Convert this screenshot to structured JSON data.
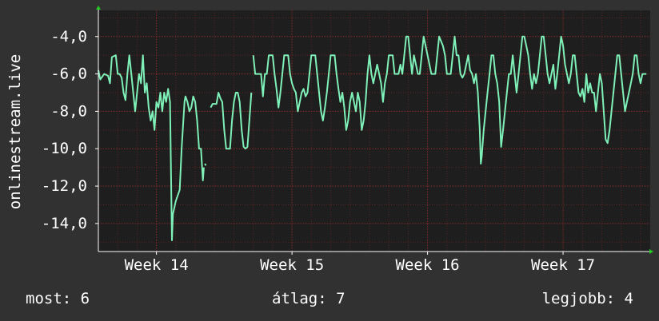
{
  "colors": {
    "background": "#313131",
    "plot_background": "#1e1e1e",
    "grid": "#8a2a2a",
    "series": "#7ef0b8",
    "axis": "#ffffff",
    "arrow": "#22cc22"
  },
  "stats": {
    "now": "most: 6",
    "avg": "átlag: 7",
    "best": "legjobb: 4"
  },
  "chart_data": {
    "type": "line",
    "title": "",
    "ylabel": "onlinestream.live",
    "xlabel": "",
    "grid": true,
    "ylim": [
      -15.5,
      -2.6
    ],
    "yticks": [
      -14,
      -12,
      -10,
      -8,
      -6,
      -4
    ],
    "ytick_labels": [
      "-14,0",
      "-12,0",
      "-10,0",
      "-8,0",
      "-6,0",
      "-4,0"
    ],
    "xlim": [
      0,
      28.5
    ],
    "xticks": [
      3,
      10,
      17,
      24
    ],
    "xtick_labels": [
      "Week 14",
      "Week 15",
      "Week 16",
      "Week 17"
    ],
    "x_minor_grid": [
      1,
      2,
      4,
      5,
      6,
      7,
      8,
      9,
      11,
      12,
      13,
      14,
      15,
      16,
      18,
      19,
      20,
      21,
      22,
      23,
      25,
      26,
      27,
      28
    ],
    "series": [
      {
        "name": "",
        "segments": [
          [
            [
              0.0,
              -5.8
            ],
            [
              0.1,
              -6.3
            ],
            [
              0.3,
              -6.0
            ],
            [
              0.5,
              -6.1
            ],
            [
              0.6,
              -6.5
            ],
            [
              0.7,
              -5.1
            ],
            [
              0.9,
              -5.0
            ],
            [
              1.0,
              -6.0
            ],
            [
              1.1,
              -6.0
            ],
            [
              1.2,
              -6.2
            ],
            [
              1.3,
              -7.0
            ],
            [
              1.4,
              -7.4
            ],
            [
              1.5,
              -6.0
            ],
            [
              1.6,
              -5.0
            ],
            [
              1.7,
              -6.0
            ],
            [
              1.8,
              -7.0
            ],
            [
              1.9,
              -8.0
            ],
            [
              2.0,
              -7.0
            ],
            [
              2.1,
              -6.0
            ],
            [
              2.2,
              -6.5
            ],
            [
              2.3,
              -5.0
            ],
            [
              2.4,
              -7.0
            ],
            [
              2.5,
              -6.5
            ],
            [
              2.6,
              -7.8
            ],
            [
              2.7,
              -8.5
            ],
            [
              2.8,
              -8.0
            ],
            [
              2.9,
              -9.0
            ],
            [
              3.0,
              -7.5
            ],
            [
              3.1,
              -7.8
            ],
            [
              3.2,
              -7.0
            ],
            [
              3.3,
              -8.0
            ],
            [
              3.4,
              -7.0
            ],
            [
              3.5,
              -7.5
            ],
            [
              3.6,
              -6.8
            ],
            [
              3.7,
              -7.5
            ],
            [
              3.8,
              -14.9
            ],
            [
              3.85,
              -13.5
            ],
            [
              4.0,
              -12.8
            ],
            [
              4.2,
              -12.2
            ],
            [
              4.3,
              -10.0
            ],
            [
              4.45,
              -7.5
            ],
            [
              4.5,
              -7.2
            ],
            [
              4.6,
              -7.5
            ],
            [
              4.7,
              -8.0
            ],
            [
              4.8,
              -7.8
            ],
            [
              4.9,
              -7.2
            ],
            [
              5.0,
              -7.5
            ],
            [
              5.1,
              -8.5
            ],
            [
              5.2,
              -10.0
            ],
            [
              5.3,
              -10.0
            ],
            [
              5.4,
              -11.7
            ],
            [
              5.45,
              -11.0
            ]
          ],
          [
            [
              5.5,
              -10.8
            ],
            [
              5.55,
              -10.9
            ]
          ],
          [
            [
              5.8,
              -7.8
            ],
            [
              5.9,
              -7.6
            ],
            [
              6.1,
              -7.6
            ],
            [
              6.2,
              -7.0
            ],
            [
              6.3,
              -7.3
            ],
            [
              6.4,
              -7.5
            ],
            [
              6.5,
              -9.0
            ],
            [
              6.6,
              -10.0
            ],
            [
              6.7,
              -10.0
            ],
            [
              6.8,
              -10.0
            ],
            [
              6.9,
              -8.5
            ],
            [
              7.0,
              -7.5
            ],
            [
              7.1,
              -7.0
            ],
            [
              7.2,
              -7.0
            ],
            [
              7.3,
              -7.5
            ],
            [
              7.4,
              -9.0
            ],
            [
              7.5,
              -9.9
            ],
            [
              7.6,
              -10.0
            ],
            [
              7.7,
              -9.9
            ],
            [
              7.8,
              -8.5
            ],
            [
              7.9,
              -7.0
            ]
          ],
          [
            [
              8.0,
              -5.0
            ],
            [
              8.1,
              -6.0
            ],
            [
              8.2,
              -6.0
            ],
            [
              8.4,
              -6.0
            ],
            [
              8.5,
              -7.2
            ],
            [
              8.6,
              -6.0
            ],
            [
              8.7,
              -6.0
            ],
            [
              8.8,
              -5.0
            ],
            [
              9.0,
              -5.0
            ],
            [
              9.1,
              -6.0
            ],
            [
              9.2,
              -6.8
            ],
            [
              9.3,
              -7.8
            ],
            [
              9.4,
              -7.0
            ],
            [
              9.5,
              -6.0
            ],
            [
              9.6,
              -5.0
            ],
            [
              9.8,
              -5.0
            ],
            [
              9.9,
              -6.0
            ],
            [
              10.0,
              -6.5
            ],
            [
              10.1,
              -6.8
            ],
            [
              10.2,
              -7.0
            ],
            [
              10.3,
              -8.0
            ],
            [
              10.4,
              -7.5
            ],
            [
              10.5,
              -7.0
            ],
            [
              10.6,
              -6.8
            ],
            [
              10.7,
              -7.2
            ],
            [
              10.8,
              -7.0
            ],
            [
              10.9,
              -6.0
            ],
            [
              11.0,
              -5.0
            ],
            [
              11.2,
              -5.0
            ],
            [
              11.3,
              -6.0
            ],
            [
              11.4,
              -7.0
            ],
            [
              11.5,
              -8.0
            ],
            [
              11.6,
              -8.5
            ],
            [
              11.7,
              -7.8
            ],
            [
              11.8,
              -7.0
            ],
            [
              11.9,
              -6.0
            ],
            [
              12.0,
              -5.0
            ],
            [
              12.2,
              -5.0
            ],
            [
              12.3,
              -6.0
            ],
            [
              12.4,
              -6.8
            ],
            [
              12.5,
              -7.5
            ],
            [
              12.6,
              -7.0
            ],
            [
              12.7,
              -7.8
            ],
            [
              12.8,
              -9.0
            ],
            [
              12.9,
              -8.5
            ],
            [
              13.0,
              -7.5
            ],
            [
              13.1,
              -7.0
            ],
            [
              13.2,
              -7.5
            ],
            [
              13.3,
              -8.0
            ],
            [
              13.4,
              -7.0
            ],
            [
              13.5,
              -7.5
            ],
            [
              13.6,
              -9.0
            ],
            [
              13.7,
              -8.5
            ],
            [
              13.8,
              -7.5
            ],
            [
              13.9,
              -6.0
            ],
            [
              14.0,
              -5.0
            ],
            [
              14.1,
              -6.0
            ],
            [
              14.2,
              -6.5
            ],
            [
              14.3,
              -6.0
            ],
            [
              14.4,
              -5.5
            ],
            [
              14.5,
              -6.0
            ],
            [
              14.6,
              -6.5
            ],
            [
              14.7,
              -7.5
            ],
            [
              14.8,
              -6.5
            ],
            [
              14.9,
              -6.0
            ],
            [
              15.0,
              -5.0
            ],
            [
              15.2,
              -5.0
            ],
            [
              15.3,
              -6.0
            ],
            [
              15.5,
              -6.0
            ],
            [
              15.6,
              -5.5
            ],
            [
              15.7,
              -6.0
            ],
            [
              15.8,
              -5.0
            ],
            [
              15.9,
              -4.0
            ],
            [
              16.0,
              -4.0
            ],
            [
              16.1,
              -5.0
            ],
            [
              16.2,
              -6.0
            ],
            [
              16.3,
              -5.0
            ],
            [
              16.4,
              -5.5
            ],
            [
              16.5,
              -6.0
            ],
            [
              16.6,
              -6.0
            ],
            [
              16.7,
              -5.0
            ],
            [
              16.8,
              -4.0
            ],
            [
              16.9,
              -4.5
            ],
            [
              17.0,
              -5.0
            ],
            [
              17.1,
              -5.5
            ],
            [
              17.2,
              -6.0
            ],
            [
              17.4,
              -6.0
            ],
            [
              17.5,
              -5.0
            ],
            [
              17.6,
              -4.0
            ],
            [
              17.8,
              -4.5
            ],
            [
              17.9,
              -5.0
            ],
            [
              18.0,
              -6.0
            ],
            [
              18.2,
              -6.0
            ],
            [
              18.3,
              -5.0
            ],
            [
              18.4,
              -4.0
            ],
            [
              18.5,
              -5.0
            ],
            [
              18.6,
              -5.0
            ],
            [
              18.7,
              -6.0
            ],
            [
              18.8,
              -6.2
            ],
            [
              18.9,
              -6.0
            ],
            [
              19.0,
              -5.5
            ],
            [
              19.1,
              -5.0
            ],
            [
              19.2,
              -5.8
            ],
            [
              19.3,
              -6.0
            ],
            [
              19.4,
              -6.5
            ],
            [
              19.5,
              -6.0
            ],
            [
              19.6,
              -7.0
            ],
            [
              19.7,
              -9.0
            ],
            [
              19.75,
              -10.8
            ],
            [
              19.8,
              -10.4
            ],
            [
              19.9,
              -9.0
            ],
            [
              20.0,
              -8.0
            ],
            [
              20.1,
              -7.0
            ],
            [
              20.2,
              -6.0
            ],
            [
              20.3,
              -5.0
            ],
            [
              20.4,
              -5.0
            ],
            [
              20.5,
              -6.0
            ],
            [
              20.6,
              -6.5
            ],
            [
              20.7,
              -7.5
            ],
            [
              20.8,
              -9.9
            ],
            [
              20.9,
              -9.0
            ],
            [
              21.0,
              -8.0
            ],
            [
              21.1,
              -7.0
            ],
            [
              21.2,
              -6.0
            ],
            [
              21.3,
              -6.0
            ],
            [
              21.4,
              -5.0
            ],
            [
              21.5,
              -6.0
            ],
            [
              21.6,
              -7.0
            ],
            [
              21.7,
              -6.0
            ],
            [
              21.8,
              -5.0
            ],
            [
              21.9,
              -4.0
            ],
            [
              22.0,
              -4.0
            ],
            [
              22.1,
              -4.5
            ],
            [
              22.2,
              -5.0
            ],
            [
              22.3,
              -6.0
            ],
            [
              22.4,
              -6.8
            ],
            [
              22.5,
              -6.0
            ],
            [
              22.6,
              -6.5
            ],
            [
              22.7,
              -6.0
            ],
            [
              22.8,
              -5.0
            ],
            [
              22.9,
              -4.0
            ],
            [
              23.0,
              -4.0
            ],
            [
              23.1,
              -5.0
            ],
            [
              23.2,
              -6.0
            ],
            [
              23.3,
              -6.5
            ],
            [
              23.4,
              -6.0
            ],
            [
              23.5,
              -5.5
            ],
            [
              23.6,
              -6.8
            ],
            [
              23.7,
              -6.0
            ],
            [
              23.8,
              -5.0
            ],
            [
              23.9,
              -4.0
            ],
            [
              24.0,
              -4.5
            ],
            [
              24.1,
              -5.5
            ],
            [
              24.2,
              -6.0
            ],
            [
              24.3,
              -6.5
            ],
            [
              24.4,
              -6.0
            ],
            [
              24.5,
              -5.0
            ],
            [
              24.6,
              -5.0
            ],
            [
              24.7,
              -6.0
            ],
            [
              24.8,
              -7.0
            ],
            [
              24.9,
              -7.2
            ],
            [
              25.0,
              -6.8
            ],
            [
              25.1,
              -7.5
            ],
            [
              25.2,
              -6.0
            ],
            [
              25.3,
              -7.0
            ],
            [
              25.4,
              -6.5
            ],
            [
              25.5,
              -7.0
            ],
            [
              25.6,
              -7.0
            ],
            [
              25.7,
              -8.0
            ],
            [
              25.8,
              -7.0
            ],
            [
              25.9,
              -6.0
            ],
            [
              26.0,
              -6.5
            ],
            [
              26.1,
              -8.0
            ],
            [
              26.2,
              -9.5
            ],
            [
              26.3,
              -9.7
            ],
            [
              26.4,
              -9.0
            ],
            [
              26.5,
              -8.0
            ],
            [
              26.6,
              -7.0
            ],
            [
              26.7,
              -6.0
            ],
            [
              26.8,
              -5.0
            ],
            [
              26.9,
              -5.0
            ],
            [
              27.0,
              -6.0
            ],
            [
              27.1,
              -7.0
            ],
            [
              27.2,
              -8.0
            ],
            [
              27.3,
              -7.5
            ],
            [
              27.4,
              -7.0
            ],
            [
              27.5,
              -6.5
            ],
            [
              27.6,
              -6.0
            ],
            [
              27.7,
              -5.0
            ],
            [
              27.8,
              -5.0
            ],
            [
              27.9,
              -6.0
            ],
            [
              28.0,
              -6.5
            ],
            [
              28.1,
              -6.0
            ],
            [
              28.2,
              -6.0
            ],
            [
              28.3,
              -6.0
            ]
          ]
        ]
      }
    ]
  }
}
